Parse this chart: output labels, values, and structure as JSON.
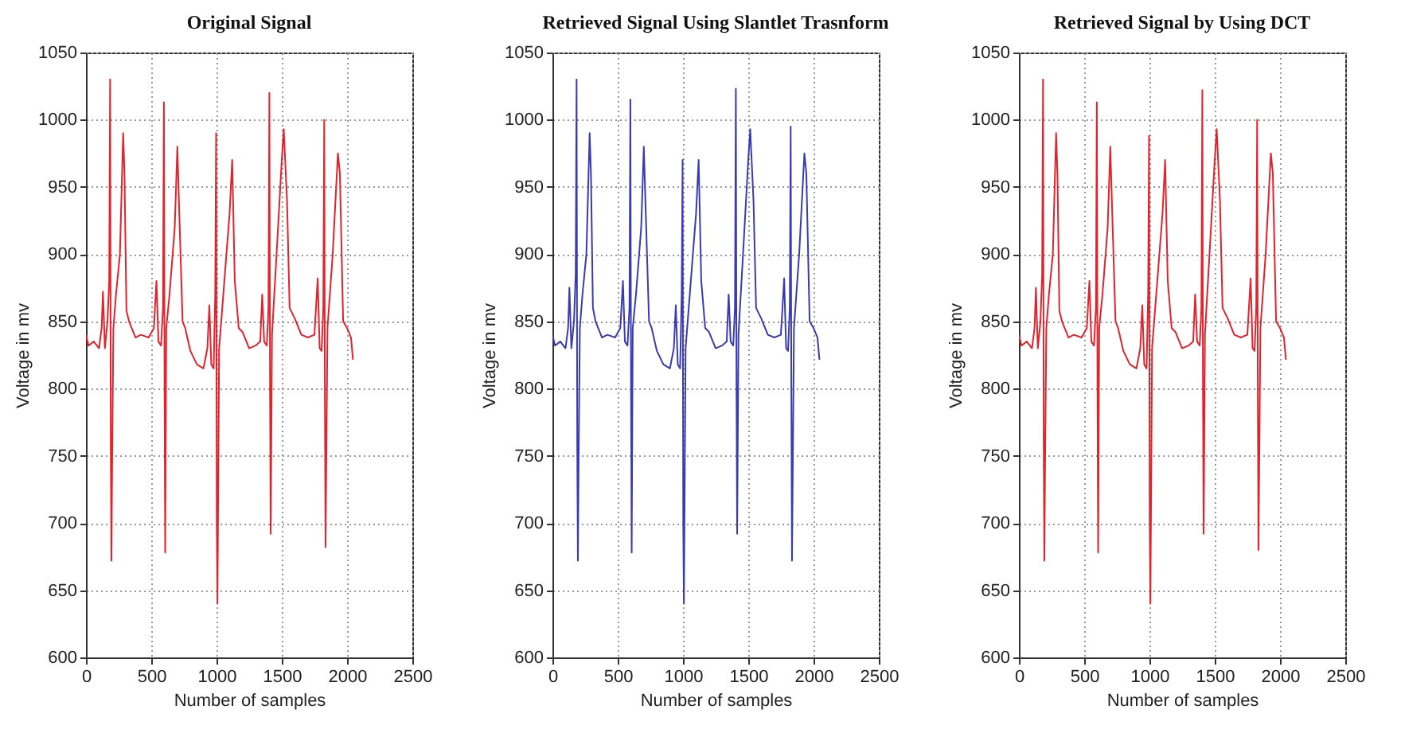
{
  "chart_data": [
    {
      "type": "line",
      "title": "Original Signal",
      "xlabel": "Number of samples",
      "ylabel": "Voltage in mv",
      "xlim": [
        0,
        2500
      ],
      "xticks": [
        0,
        500,
        1000,
        1500,
        2000,
        2500
      ],
      "ylim": [
        600,
        1050
      ],
      "yticks": [
        600,
        650,
        700,
        750,
        800,
        850,
        900,
        950,
        1000,
        1050
      ],
      "grid": true,
      "line_style": "solid",
      "series": [
        {
          "color": "#e3222b",
          "x": [
            0,
            20,
            60,
            100,
            120,
            130,
            145,
            165,
            178,
            185,
            190,
            195,
            200,
            210,
            230,
            260,
            285,
            295,
            310,
            330,
            350,
            380,
            420,
            480,
            520,
            540,
            555,
            575,
            590,
            597,
            602,
            607,
            615,
            640,
            680,
            700,
            715,
            740,
            760,
            800,
            850,
            900,
            930,
            945,
            960,
            978,
            990,
            997,
            1002,
            1007,
            1020,
            1060,
            1100,
            1120,
            1140,
            1170,
            1200,
            1250,
            1300,
            1335,
            1350,
            1365,
            1385,
            1398,
            1405,
            1410,
            1415,
            1425,
            1460,
            1500,
            1515,
            1540,
            1560,
            1600,
            1650,
            1700,
            1750,
            1775,
            1790,
            1805,
            1818,
            1825,
            1830,
            1835,
            1850,
            1890,
            1930,
            1945,
            1970,
            2000,
            2030,
            2045
          ],
          "values": [
            840,
            832,
            835,
            830,
            845,
            872,
            830,
            850,
            880,
            1030,
            760,
            672,
            740,
            845,
            870,
            900,
            990,
            960,
            858,
            850,
            845,
            838,
            840,
            838,
            845,
            880,
            835,
            832,
            860,
            1013,
            800,
            678,
            845,
            870,
            920,
            980,
            930,
            850,
            845,
            828,
            818,
            815,
            830,
            862,
            818,
            815,
            870,
            990,
            700,
            640,
            830,
            880,
            930,
            970,
            880,
            845,
            842,
            830,
            832,
            835,
            870,
            835,
            832,
            860,
            1020,
            800,
            692,
            840,
            900,
            970,
            993,
            940,
            860,
            852,
            840,
            838,
            840,
            882,
            830,
            828,
            860,
            1000,
            800,
            682,
            845,
            900,
            975,
            960,
            850,
            845,
            838,
            822
          ]
        }
      ]
    },
    {
      "type": "line",
      "title": "Retrieved Signal Using Slantlet Trasnform",
      "xlabel": "Number of samples",
      "ylabel": "Voltage in mv",
      "xlim": [
        0,
        2500
      ],
      "xticks": [
        0,
        500,
        1000,
        1500,
        2000,
        2500
      ],
      "ylim": [
        600,
        1050
      ],
      "yticks": [
        600,
        650,
        700,
        750,
        800,
        850,
        900,
        950,
        1000,
        1050
      ],
      "grid": true,
      "line_style": "solid",
      "series": [
        {
          "color": "#3a3ab4",
          "x": [
            0,
            20,
            60,
            100,
            120,
            130,
            145,
            165,
            178,
            185,
            190,
            195,
            200,
            210,
            230,
            260,
            285,
            295,
            310,
            330,
            350,
            380,
            420,
            480,
            520,
            540,
            555,
            575,
            590,
            597,
            602,
            607,
            615,
            640,
            680,
            700,
            715,
            740,
            760,
            800,
            850,
            900,
            930,
            945,
            960,
            978,
            990,
            997,
            1002,
            1007,
            1020,
            1060,
            1100,
            1120,
            1140,
            1170,
            1200,
            1250,
            1300,
            1335,
            1350,
            1365,
            1385,
            1398,
            1405,
            1410,
            1415,
            1425,
            1460,
            1500,
            1515,
            1540,
            1560,
            1600,
            1650,
            1700,
            1750,
            1775,
            1790,
            1805,
            1818,
            1825,
            1830,
            1835,
            1850,
            1890,
            1930,
            1945,
            1970,
            2000,
            2030,
            2045
          ],
          "values": [
            840,
            832,
            835,
            830,
            845,
            875,
            830,
            850,
            885,
            1030,
            760,
            672,
            740,
            845,
            870,
            900,
            990,
            960,
            860,
            850,
            845,
            838,
            840,
            838,
            845,
            880,
            835,
            832,
            860,
            1015,
            800,
            678,
            845,
            870,
            920,
            980,
            930,
            850,
            845,
            828,
            818,
            815,
            830,
            862,
            818,
            815,
            870,
            970,
            700,
            640,
            830,
            880,
            930,
            970,
            880,
            845,
            842,
            830,
            832,
            835,
            870,
            835,
            832,
            860,
            1023,
            800,
            692,
            840,
            900,
            970,
            993,
            940,
            860,
            852,
            840,
            838,
            840,
            882,
            830,
            828,
            860,
            995,
            800,
            672,
            845,
            900,
            975,
            960,
            850,
            845,
            838,
            822
          ]
        }
      ]
    },
    {
      "type": "line",
      "title": "Retrieved Signal by Using DCT",
      "xlabel": "Number of samples",
      "ylabel": "Voltage in mv",
      "xlim": [
        0,
        2500
      ],
      "xticks": [
        0,
        500,
        1000,
        1500,
        2000,
        2500
      ],
      "ylim": [
        600,
        1050
      ],
      "yticks": [
        600,
        650,
        700,
        750,
        800,
        850,
        900,
        950,
        1000,
        1050
      ],
      "grid": true,
      "line_style": "solid",
      "series": [
        {
          "color": "#e3222b",
          "x": [
            0,
            20,
            60,
            100,
            120,
            130,
            145,
            165,
            178,
            185,
            190,
            195,
            200,
            210,
            230,
            260,
            285,
            295,
            310,
            330,
            350,
            380,
            420,
            480,
            520,
            540,
            555,
            575,
            590,
            597,
            602,
            607,
            615,
            640,
            680,
            700,
            715,
            740,
            760,
            800,
            850,
            900,
            930,
            945,
            960,
            978,
            990,
            997,
            1002,
            1007,
            1020,
            1060,
            1100,
            1120,
            1140,
            1170,
            1200,
            1250,
            1300,
            1335,
            1350,
            1365,
            1385,
            1398,
            1405,
            1410,
            1415,
            1425,
            1460,
            1500,
            1515,
            1540,
            1560,
            1600,
            1650,
            1700,
            1750,
            1775,
            1790,
            1805,
            1818,
            1825,
            1830,
            1835,
            1850,
            1890,
            1930,
            1945,
            1970,
            2000,
            2030,
            2045
          ],
          "values": [
            840,
            832,
            835,
            830,
            845,
            875,
            830,
            850,
            885,
            1030,
            760,
            672,
            740,
            845,
            870,
            900,
            990,
            960,
            858,
            850,
            845,
            838,
            840,
            838,
            845,
            880,
            835,
            832,
            860,
            1013,
            800,
            678,
            845,
            870,
            920,
            980,
            930,
            850,
            845,
            828,
            818,
            815,
            830,
            862,
            818,
            815,
            870,
            988,
            700,
            640,
            830,
            880,
            930,
            970,
            880,
            845,
            842,
            830,
            832,
            835,
            870,
            835,
            832,
            860,
            1022,
            800,
            692,
            840,
            900,
            970,
            993,
            940,
            860,
            852,
            840,
            838,
            840,
            882,
            830,
            828,
            860,
            1000,
            800,
            680,
            845,
            900,
            975,
            960,
            850,
            845,
            838,
            822
          ]
        }
      ]
    }
  ]
}
